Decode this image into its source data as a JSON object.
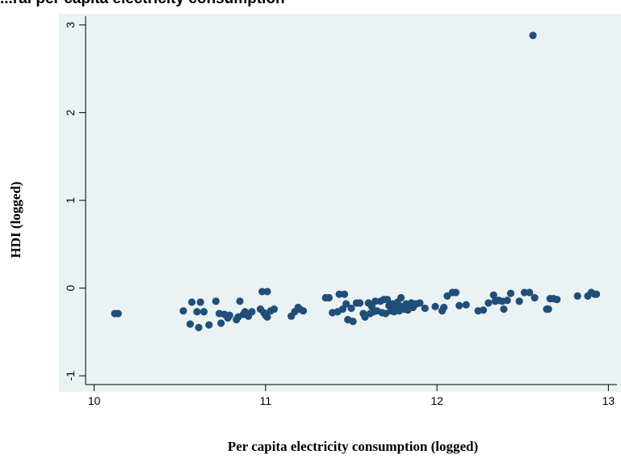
{
  "chart_data": {
    "type": "scatter",
    "title": "...ral per capita electricity consumption",
    "xlabel": "Per capita electricity consumption (logged)",
    "ylabel": "HDI (logged)",
    "xlim": [
      9.95,
      13.05
    ],
    "ylim": [
      -1.1,
      3.1
    ],
    "xticks": [
      "10",
      "11",
      "12",
      "13"
    ],
    "yticks": [
      "-1",
      "0",
      "1",
      "2",
      "3"
    ],
    "grid": false,
    "legend": "none",
    "colors": {
      "plot_region": "#eaf2f3",
      "marker": "#1f4e79",
      "axis": "#000000"
    },
    "points": [
      [
        10.12,
        -0.29
      ],
      [
        10.14,
        -0.29
      ],
      [
        10.52,
        -0.26
      ],
      [
        10.56,
        -0.41
      ],
      [
        10.57,
        -0.16
      ],
      [
        10.6,
        -0.27
      ],
      [
        10.61,
        -0.45
      ],
      [
        10.62,
        -0.16
      ],
      [
        10.64,
        -0.27
      ],
      [
        10.67,
        -0.42
      ],
      [
        10.71,
        -0.15
      ],
      [
        10.73,
        -0.29
      ],
      [
        10.74,
        -0.4
      ],
      [
        10.76,
        -0.3
      ],
      [
        10.78,
        -0.34
      ],
      [
        10.79,
        -0.31
      ],
      [
        10.83,
        -0.36
      ],
      [
        10.84,
        -0.33
      ],
      [
        10.85,
        -0.15
      ],
      [
        10.87,
        -0.3
      ],
      [
        10.88,
        -0.27
      ],
      [
        10.9,
        -0.32
      ],
      [
        10.92,
        -0.27
      ],
      [
        10.97,
        -0.24
      ],
      [
        10.98,
        -0.04
      ],
      [
        10.99,
        -0.28
      ],
      [
        11.0,
        -0.31
      ],
      [
        11.01,
        -0.04
      ],
      [
        11.01,
        -0.33
      ],
      [
        11.03,
        -0.26
      ],
      [
        11.05,
        -0.24
      ],
      [
        11.15,
        -0.32
      ],
      [
        11.17,
        -0.27
      ],
      [
        11.19,
        -0.22
      ],
      [
        11.2,
        -0.24
      ],
      [
        11.22,
        -0.26
      ],
      [
        11.35,
        -0.11
      ],
      [
        11.37,
        -0.11
      ],
      [
        11.39,
        -0.28
      ],
      [
        11.42,
        -0.27
      ],
      [
        11.43,
        -0.07
      ],
      [
        11.45,
        -0.24
      ],
      [
        11.46,
        -0.07
      ],
      [
        11.47,
        -0.18
      ],
      [
        11.48,
        -0.36
      ],
      [
        11.5,
        -0.23
      ],
      [
        11.51,
        -0.38
      ],
      [
        11.53,
        -0.17
      ],
      [
        11.55,
        -0.17
      ],
      [
        11.57,
        -0.29
      ],
      [
        11.58,
        -0.33
      ],
      [
        11.6,
        -0.17
      ],
      [
        11.61,
        -0.29
      ],
      [
        11.62,
        -0.21
      ],
      [
        11.63,
        -0.27
      ],
      [
        11.64,
        -0.15
      ],
      [
        11.65,
        -0.26
      ],
      [
        11.67,
        -0.15
      ],
      [
        11.68,
        -0.28
      ],
      [
        11.69,
        -0.13
      ],
      [
        11.7,
        -0.29
      ],
      [
        11.71,
        -0.13
      ],
      [
        11.72,
        -0.2
      ],
      [
        11.73,
        -0.26
      ],
      [
        11.74,
        -0.18
      ],
      [
        11.75,
        -0.27
      ],
      [
        11.76,
        -0.2
      ],
      [
        11.77,
        -0.16
      ],
      [
        11.78,
        -0.26
      ],
      [
        11.79,
        -0.11
      ],
      [
        11.8,
        -0.21
      ],
      [
        11.81,
        -0.24
      ],
      [
        11.82,
        -0.18
      ],
      [
        11.83,
        -0.25
      ],
      [
        11.84,
        -0.19
      ],
      [
        11.85,
        -0.17
      ],
      [
        11.86,
        -0.22
      ],
      [
        11.87,
        -0.18
      ],
      [
        11.88,
        -0.18
      ],
      [
        11.9,
        -0.17
      ],
      [
        11.93,
        -0.23
      ],
      [
        11.99,
        -0.21
      ],
      [
        12.03,
        -0.26
      ],
      [
        12.04,
        -0.22
      ],
      [
        12.06,
        -0.09
      ],
      [
        12.09,
        -0.05
      ],
      [
        12.11,
        -0.05
      ],
      [
        12.13,
        -0.2
      ],
      [
        12.17,
        -0.19
      ],
      [
        12.24,
        -0.26
      ],
      [
        12.27,
        -0.25
      ],
      [
        12.3,
        -0.17
      ],
      [
        12.33,
        -0.08
      ],
      [
        12.34,
        -0.15
      ],
      [
        12.36,
        -0.14
      ],
      [
        12.38,
        -0.15
      ],
      [
        12.39,
        -0.24
      ],
      [
        12.41,
        -0.14
      ],
      [
        12.43,
        -0.06
      ],
      [
        12.48,
        -0.15
      ],
      [
        12.51,
        -0.05
      ],
      [
        12.54,
        -0.05
      ],
      [
        12.57,
        -0.11
      ],
      [
        12.56,
        2.88
      ],
      [
        12.64,
        -0.24
      ],
      [
        12.65,
        -0.24
      ],
      [
        12.66,
        -0.12
      ],
      [
        12.68,
        -0.12
      ],
      [
        12.7,
        -0.13
      ],
      [
        12.82,
        -0.09
      ],
      [
        12.88,
        -0.09
      ],
      [
        12.9,
        -0.05
      ],
      [
        12.92,
        -0.07
      ],
      [
        12.93,
        -0.07
      ]
    ]
  }
}
